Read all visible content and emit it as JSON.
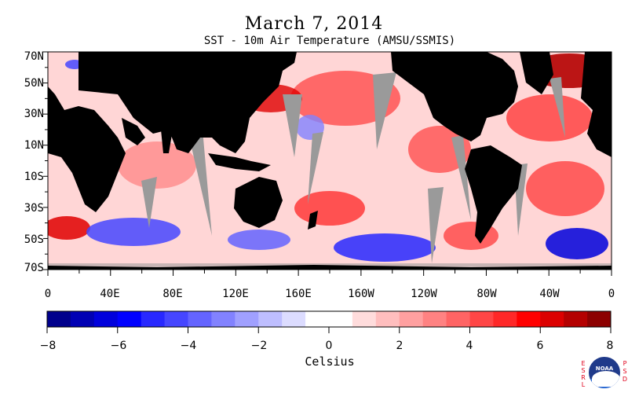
{
  "header": {
    "title": "March 7, 2014",
    "subtitle": "SST - 10m Air Temperature (AMSU/SSMIS)"
  },
  "map": {
    "lat_labels": [
      "70N",
      "50N",
      "30N",
      "10N",
      "10S",
      "30S",
      "50S",
      "70S"
    ],
    "lon_labels": [
      "0",
      "40E",
      "80E",
      "120E",
      "160E",
      "160W",
      "120W",
      "80W",
      "40W",
      "0"
    ],
    "lat_range": [
      -70,
      70
    ],
    "lon_range": [
      0,
      360
    ],
    "land_color": "#000000",
    "missing_data_color": "#9a9a9a"
  },
  "colorbar": {
    "unit": "Celsius",
    "tick_labels": [
      "−8",
      "−6",
      "−4",
      "−2",
      "0",
      "2",
      "4",
      "6",
      "8"
    ],
    "range": [
      -8,
      8
    ],
    "colors": [
      "#00008c",
      "#0000b4",
      "#0000dc",
      "#0000ff",
      "#2828ff",
      "#4646ff",
      "#6464ff",
      "#8282ff",
      "#a0a0ff",
      "#bebeff",
      "#dcdcff",
      "#ffffff",
      "#ffffff",
      "#ffdcdc",
      "#ffbebe",
      "#ffa0a0",
      "#ff8282",
      "#ff6464",
      "#ff4646",
      "#ff2828",
      "#ff0000",
      "#dc0000",
      "#b40000",
      "#8c0000"
    ]
  },
  "logo": {
    "left_text": "ESRL",
    "right_text": "PSD",
    "name": "NOAA"
  }
}
